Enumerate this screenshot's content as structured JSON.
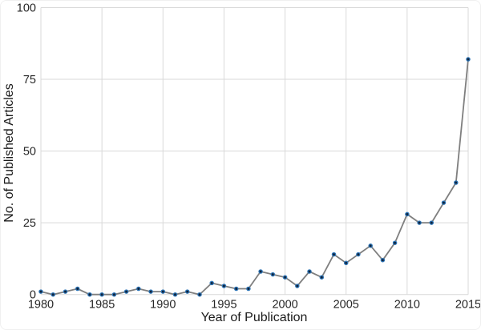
{
  "chart_data": {
    "type": "line",
    "title": "",
    "xlabel": "Year of Publication",
    "ylabel": "No. of Published Articles",
    "x": [
      1980,
      1981,
      1982,
      1983,
      1984,
      1985,
      1986,
      1987,
      1988,
      1989,
      1990,
      1991,
      1992,
      1993,
      1994,
      1995,
      1996,
      1997,
      1998,
      1999,
      2000,
      2001,
      2002,
      2003,
      2004,
      2005,
      2006,
      2007,
      2008,
      2009,
      2010,
      2011,
      2012,
      2013,
      2014,
      2015
    ],
    "values": [
      1,
      0,
      1,
      2,
      0,
      0,
      0,
      1,
      2,
      1,
      1,
      0,
      1,
      0,
      4,
      3,
      2,
      2,
      8,
      7,
      6,
      3,
      8,
      6,
      14,
      11,
      14,
      17,
      12,
      18,
      28,
      25,
      25,
      32,
      39,
      82
    ],
    "xlim": [
      1980,
      2015
    ],
    "ylim": [
      0,
      100
    ],
    "xticks": [
      1980,
      1985,
      1990,
      1995,
      2000,
      2005,
      2010,
      2015
    ],
    "yticks": [
      0,
      25,
      50,
      75,
      100
    ],
    "grid": true,
    "legend": "none",
    "colors": {
      "line": "#7f7f7f",
      "marker_fill": "#0f243e",
      "marker_edge": "#2e75b6",
      "grid": "#d9d9d9",
      "text": "#1a1a1a",
      "tick_text": "#262626",
      "background": "#ffffff"
    }
  }
}
